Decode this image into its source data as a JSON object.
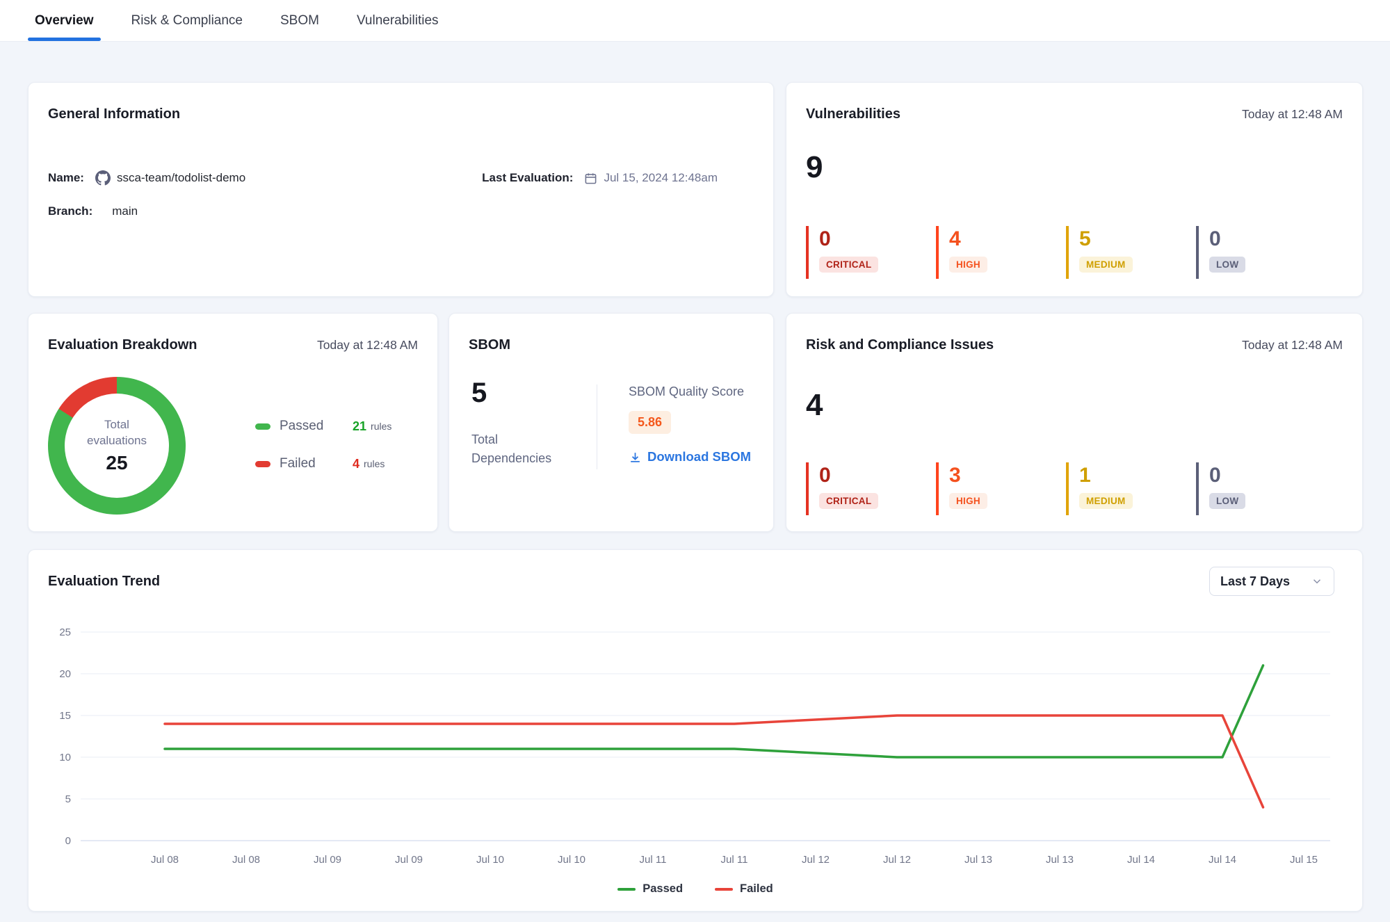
{
  "tabs": [
    {
      "label": "Overview",
      "active": true
    },
    {
      "label": "Risk & Compliance",
      "active": false
    },
    {
      "label": "SBOM",
      "active": false
    },
    {
      "label": "Vulnerabilities",
      "active": false
    }
  ],
  "general_info": {
    "title": "General Information",
    "name_label": "Name:",
    "name_value": "ssca-team/todolist-demo",
    "last_eval_label": "Last Evaluation:",
    "last_eval_value": "Jul 15, 2024 12:48am",
    "branch_label": "Branch:",
    "branch_value": "main"
  },
  "vulnerabilities": {
    "title": "Vulnerabilities",
    "timestamp": "Today at 12:48 AM",
    "total": "9",
    "severities": [
      {
        "label": "CRITICAL",
        "count": "0"
      },
      {
        "label": "HIGH",
        "count": "4"
      },
      {
        "label": "MEDIUM",
        "count": "5"
      },
      {
        "label": "LOW",
        "count": "0"
      }
    ]
  },
  "evaluation_breakdown": {
    "title": "Evaluation Breakdown",
    "timestamp": "Today at 12:48 AM",
    "center_label_line1": "Total",
    "center_label_line2": "evaluations",
    "total": "25",
    "legend": [
      {
        "label": "Passed",
        "count": "21",
        "unit": "rules"
      },
      {
        "label": "Failed",
        "count": "4",
        "unit": "rules"
      }
    ]
  },
  "sbom": {
    "title": "SBOM",
    "total_dependencies": "5",
    "total_label_line1": "Total",
    "total_label_line2": "Dependencies",
    "quality_label": "SBOM Quality Score",
    "quality_score": "5.86",
    "download_label": "Download SBOM"
  },
  "risk_compliance": {
    "title": "Risk and Compliance Issues",
    "timestamp": "Today at 12:48 AM",
    "total": "4",
    "severities": [
      {
        "label": "CRITICAL",
        "count": "0"
      },
      {
        "label": "HIGH",
        "count": "3"
      },
      {
        "label": "MEDIUM",
        "count": "1"
      },
      {
        "label": "LOW",
        "count": "0"
      }
    ]
  },
  "evaluation_trend": {
    "title": "Evaluation Trend",
    "range_selector": "Last 7 Days"
  },
  "chart_data": {
    "type": "line",
    "title": "Evaluation Trend",
    "x_tick_labels": [
      "Jul 08",
      "Jul 08",
      "Jul 09",
      "Jul 09",
      "Jul 10",
      "Jul 10",
      "Jul 11",
      "Jul 11",
      "Jul 12",
      "Jul 12",
      "Jul 13",
      "Jul 13",
      "Jul 14",
      "Jul 14",
      "Jul 15"
    ],
    "y_ticks": [
      0,
      5,
      10,
      15,
      20,
      25
    ],
    "ylim": [
      0,
      25
    ],
    "grid": true,
    "legend_position": "bottom",
    "series": [
      {
        "name": "Passed",
        "color": "#2ea13b",
        "points": [
          [
            0,
            11
          ],
          [
            7,
            11
          ],
          [
            9,
            10
          ],
          [
            13,
            10
          ],
          [
            13.5,
            21
          ]
        ]
      },
      {
        "name": "Failed",
        "color": "#e8443a",
        "points": [
          [
            0,
            14
          ],
          [
            7,
            14
          ],
          [
            9,
            15
          ],
          [
            13,
            15
          ],
          [
            13.5,
            4
          ]
        ]
      }
    ]
  },
  "colors": {
    "page_bg": "#f2f5fa",
    "card_border": "#e9edf4",
    "heading": "#191c26",
    "text": "#23262f",
    "muted": "#6e7390",
    "slate": "#5f6680",
    "timestamp": "#474b5e",
    "axis": "#71768a",
    "tab_inactive": "#3a3f4d",
    "tab_underline": "#2272e0",
    "link": "#2b76e0",
    "score_text": "#f4581c",
    "score_bg": "#fdeee1",
    "donut_passed": "#41b64d",
    "donut_failed": "#e23b31",
    "count_passed": "#18a327",
    "count_failed": "#df2b1f",
    "grid": "#edf0f7",
    "grid_zero": "#dce2f0",
    "critical_bar": "#e53222",
    "critical_text": "#b02318",
    "critical_bg": "#fbe3e1",
    "high_bar": "#ff431d",
    "high_text": "#f4511e",
    "high_bg": "#fdeee6",
    "medium_bar": "#e0a40a",
    "medium_text": "#cf9f00",
    "medium_bg": "#fbf3d9",
    "low_bar": "#5b5f78",
    "low_text": "#5b5f78",
    "low_bg": "#d9dbe6",
    "github_icon": "#5b5f79",
    "calendar_icon": "#6f7490",
    "dropdown_border": "#d9dee9",
    "chevron": "#8a90a8"
  }
}
